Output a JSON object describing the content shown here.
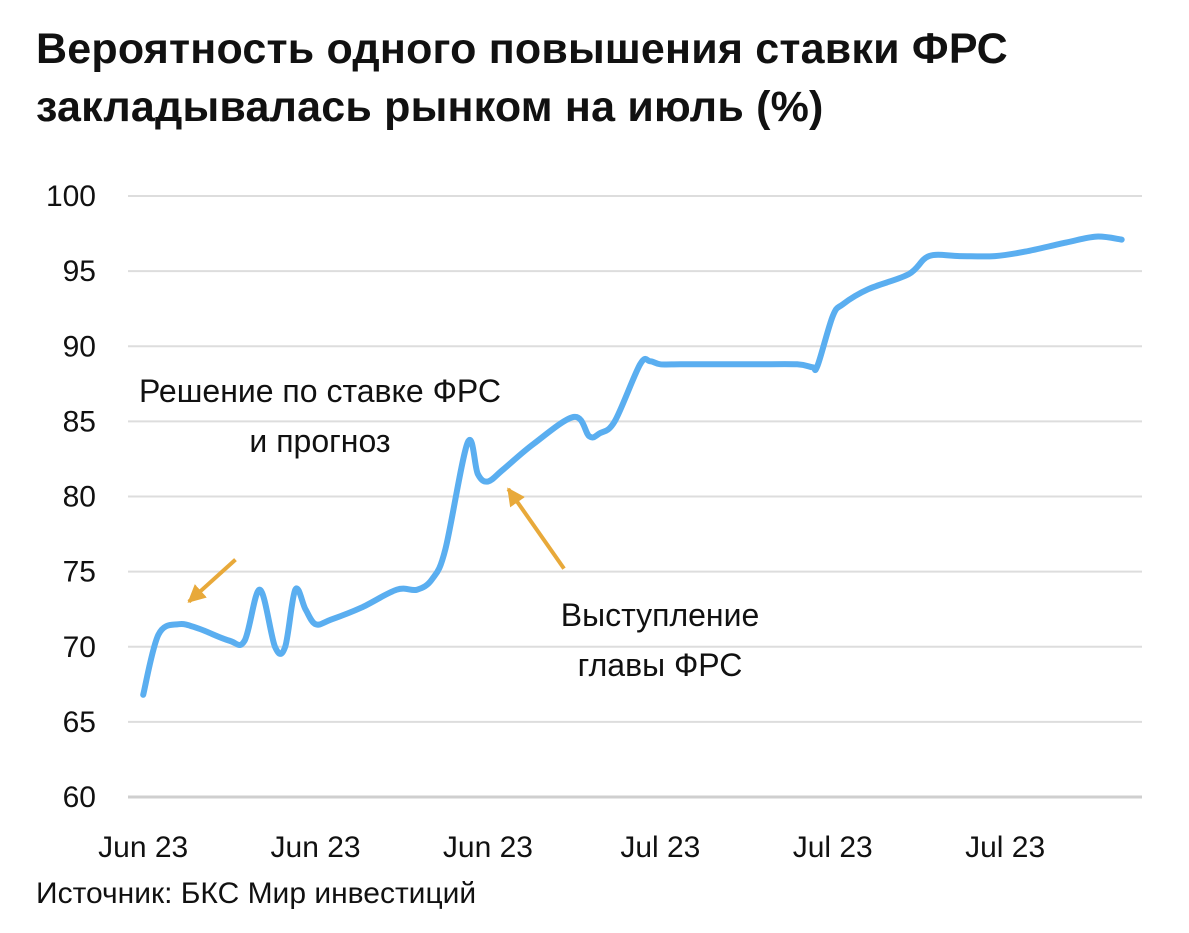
{
  "title_lines": [
    "Вероятность одного повышения ставки ФРС",
    "закладывалась рынком на июль (%)"
  ],
  "source": "Источник: БКС Мир инвестиций",
  "colors": {
    "line": "#5aaef0",
    "arrow": "#e8a93a",
    "grid": "#dddddd",
    "text": "#111111"
  },
  "chart_data": {
    "type": "line",
    "title": "Вероятность одного повышения ставки ФРС закладывалась рынком на июль (%)",
    "ylim": [
      60,
      100
    ],
    "yticks": [
      100,
      95,
      90,
      85,
      80,
      75,
      70,
      65,
      60
    ],
    "xlim": [
      0,
      100
    ],
    "xticks": [
      {
        "pos": 1.5,
        "label": "Jun 23"
      },
      {
        "pos": 18.5,
        "label": "Jun 23"
      },
      {
        "pos": 35.5,
        "label": "Jun 23"
      },
      {
        "pos": 52.5,
        "label": "Jul 23"
      },
      {
        "pos": 69.5,
        "label": "Jul 23"
      },
      {
        "pos": 86.5,
        "label": "Jul 23"
      }
    ],
    "grid": true,
    "legend": "none",
    "series": [
      {
        "x": [
          1.5,
          3.0,
          5.0,
          7.0,
          10.0,
          11.5,
          13.0,
          14.5,
          15.5,
          16.5,
          17.5,
          18.5,
          20.0,
          23.0,
          26.5,
          28.5,
          30.0,
          31.3,
          33.5,
          34.5,
          35.5,
          37.0,
          40.0,
          44.0,
          45.5,
          46.5,
          48.0,
          50.5,
          51.5,
          52.5,
          54.5,
          58.0,
          62.0,
          66.0,
          67.5,
          68.0,
          69.5,
          70.5,
          73.0,
          77.0,
          79.0,
          82.0,
          85.5,
          88.5,
          92.5,
          95.5,
          98.0
        ],
        "y": [
          66.8,
          70.8,
          71.5,
          71.2,
          70.4,
          70.4,
          73.8,
          70.0,
          70.0,
          73.8,
          72.5,
          71.5,
          71.8,
          72.6,
          73.8,
          73.8,
          74.5,
          76.5,
          83.6,
          81.5,
          81.0,
          81.8,
          83.5,
          85.3,
          84.0,
          84.2,
          85.0,
          88.8,
          89.0,
          88.8,
          88.8,
          88.8,
          88.8,
          88.8,
          88.6,
          88.7,
          92.0,
          92.8,
          93.8,
          94.8,
          96.0,
          96.0,
          96.0,
          96.3,
          96.9,
          97.3,
          97.1
        ]
      }
    ],
    "annotations": [
      {
        "lines": [
          "Решение по ставке ФРС",
          "и прогноз"
        ],
        "arrow_from": [
          10.6,
          75.8
        ],
        "arrow_to": [
          6.0,
          73.0
        ]
      },
      {
        "lines": [
          "Выступление",
          "главы ФРС"
        ],
        "arrow_from": [
          43.0,
          75.2
        ],
        "arrow_to": [
          37.5,
          80.5
        ]
      }
    ]
  }
}
